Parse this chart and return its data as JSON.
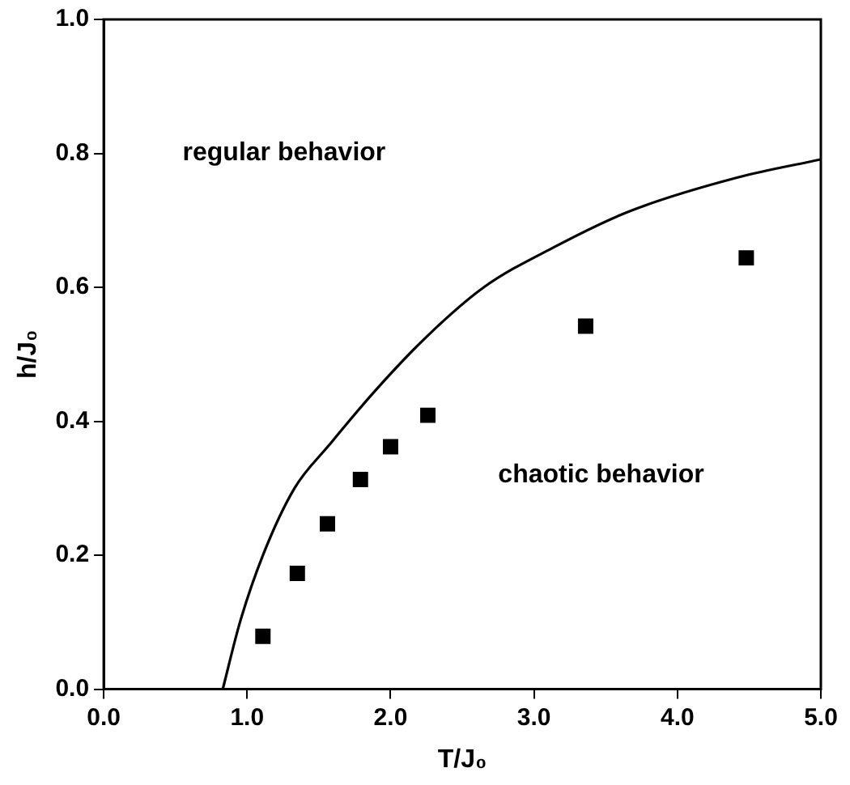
{
  "chart_data": {
    "type": "scatter",
    "xlabel": "T/J₀",
    "ylabel": "h/J₀",
    "xlim": [
      0,
      5
    ],
    "ylim": [
      0,
      1
    ],
    "xticks": [
      {
        "value": 0,
        "label": "0.0"
      },
      {
        "value": 1,
        "label": "1.0"
      },
      {
        "value": 2,
        "label": "2.0"
      },
      {
        "value": 3,
        "label": "3.0"
      },
      {
        "value": 4,
        "label": "4.0"
      },
      {
        "value": 5,
        "label": "5.0"
      }
    ],
    "yticks": [
      {
        "value": 0,
        "label": "0.0"
      },
      0.2,
      0.4,
      0.6,
      0.8,
      {
        "value": 1,
        "label": "1.0"
      }
    ],
    "grid": false,
    "legend": false,
    "marker": "square",
    "annotations": [
      "regular behavior",
      "chaotic behavior"
    ],
    "series": [
      {
        "type": "line",
        "color": "#000000",
        "marker": "none",
        "line_style": "solid",
        "x": [
          0.83,
          0.95,
          1.11,
          1.33,
          1.57,
          1.89,
          2.25,
          2.65,
          3.14,
          3.66,
          4.42,
          5.0
        ],
        "values": [
          0,
          0.1,
          0.2,
          0.3,
          0.364,
          0.445,
          0.526,
          0.6,
          0.66,
          0.713,
          0.764,
          0.791
        ]
      },
      {
        "color": "#000000",
        "x": [
          1.11,
          1.35,
          1.56,
          1.79,
          2.0,
          2.26,
          3.36,
          4.48
        ],
        "values": [
          0.079,
          0.173,
          0.247,
          0.313,
          0.362,
          0.409,
          0.542,
          0.644
        ]
      }
    ]
  }
}
